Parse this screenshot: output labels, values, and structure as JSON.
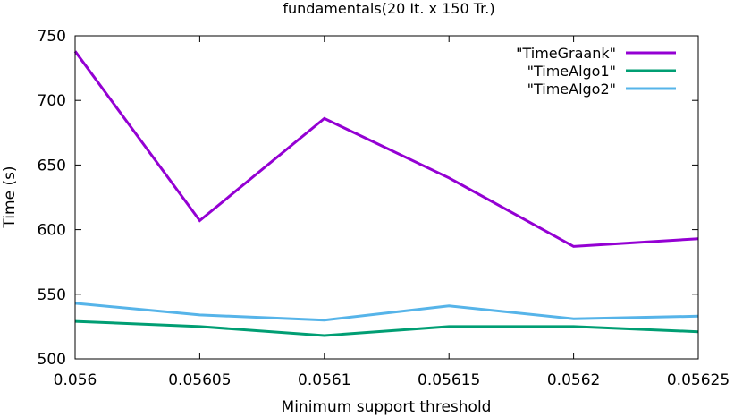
{
  "chart_data": {
    "type": "line",
    "title": "fundamentals(20 It. x  150 Tr.)",
    "xlabel": "Minimum support threshold",
    "ylabel": "Time (s)",
    "xlim": [
      0.056,
      0.05625
    ],
    "ylim": [
      500,
      750
    ],
    "x": [
      0.056,
      0.05605,
      0.0561,
      0.05615,
      0.0562,
      0.05625
    ],
    "xtick_labels": [
      "0.056",
      "0.05605",
      "0.0561",
      "0.05615",
      "0.0562",
      "0.05625"
    ],
    "yticks": [
      500,
      550,
      600,
      650,
      700,
      750
    ],
    "ytick_labels": [
      "500",
      "550",
      "600",
      "650",
      "700",
      "750"
    ],
    "legend_position": "top-right",
    "grid": false,
    "series": [
      {
        "name": "\"TimeGraank\"",
        "color": "#9400d3",
        "values": [
          738,
          607,
          686,
          640,
          587,
          593
        ]
      },
      {
        "name": "\"TimeAlgo1\"",
        "color": "#009e73",
        "values": [
          529,
          525,
          518,
          525,
          525,
          521
        ]
      },
      {
        "name": "\"TimeAlgo2\"",
        "color": "#56b4e9",
        "values": [
          543,
          534,
          530,
          541,
          531,
          533
        ]
      }
    ]
  }
}
